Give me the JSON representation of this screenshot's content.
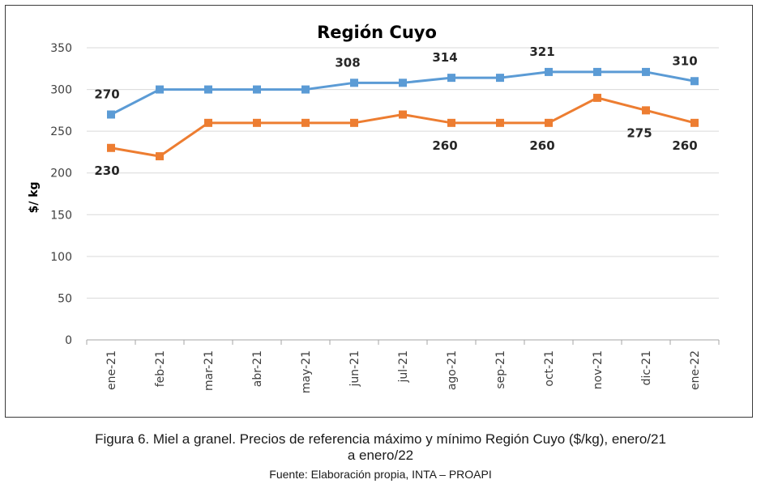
{
  "chart_data": {
    "type": "line",
    "title": "Región Cuyo",
    "ylabel": "$/ kg",
    "xlabel": "",
    "ylim": [
      0,
      350
    ],
    "yticks": [
      0,
      50,
      100,
      150,
      200,
      250,
      300,
      350
    ],
    "grid": true,
    "categories": [
      "ene-21",
      "feb-21",
      "mar-21",
      "abr-21",
      "may-21",
      "jun-21",
      "jul-21",
      "ago-21",
      "sep-21",
      "oct-21",
      "nov-21",
      "dic-21",
      "ene-22"
    ],
    "series": [
      {
        "color": "#5b9bd5",
        "values": [
          270,
          300,
          300,
          300,
          300,
          308,
          308,
          314,
          314,
          321,
          321,
          321,
          310
        ],
        "labels": [
          {
            "index": 0,
            "text": "270",
            "pos": "above"
          },
          {
            "index": 5,
            "text": "308",
            "pos": "above"
          },
          {
            "index": 7,
            "text": "314",
            "pos": "above"
          },
          {
            "index": 9,
            "text": "321",
            "pos": "above"
          },
          {
            "index": 12,
            "text": "310",
            "pos": "above"
          }
        ]
      },
      {
        "color": "#ed7d31",
        "values": [
          230,
          220,
          260,
          260,
          260,
          260,
          270,
          260,
          260,
          260,
          290,
          275,
          260
        ],
        "labels": [
          {
            "index": 0,
            "text": "230",
            "pos": "below"
          },
          {
            "index": 7,
            "text": "260",
            "pos": "below"
          },
          {
            "index": 9,
            "text": "260",
            "pos": "below"
          },
          {
            "index": 11,
            "text": "275",
            "pos": "below"
          },
          {
            "index": 12,
            "text": "260",
            "pos": "below"
          }
        ]
      }
    ]
  },
  "caption": {
    "line1": "Figura 6. Miel a granel. Precios de referencia máximo y mínimo Región Cuyo ($/kg), enero/21",
    "line2": "a enero/22",
    "source": "Fuente: Elaboración propia, INTA – PROAPI"
  }
}
